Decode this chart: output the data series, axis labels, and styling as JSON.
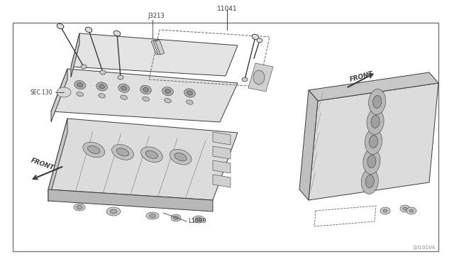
{
  "bg_color": "#ffffff",
  "line_color": "#3a3a3a",
  "light_line": "#666666",
  "fill_light": "#e8e8e8",
  "fill_mid": "#cccccc",
  "fill_dark": "#aaaaaa",
  "fig_width": 6.4,
  "fig_height": 3.72,
  "dpi": 100,
  "label_11041": "11041",
  "label_J3213": "J3213",
  "label_L1099": "L1099",
  "label_SEC130": "SEC.130",
  "label_FRONT_left": "FRONT",
  "label_FRONT_right": "FRONT",
  "label_J1101V4": "J1I101V4",
  "border_lw": 1.0
}
